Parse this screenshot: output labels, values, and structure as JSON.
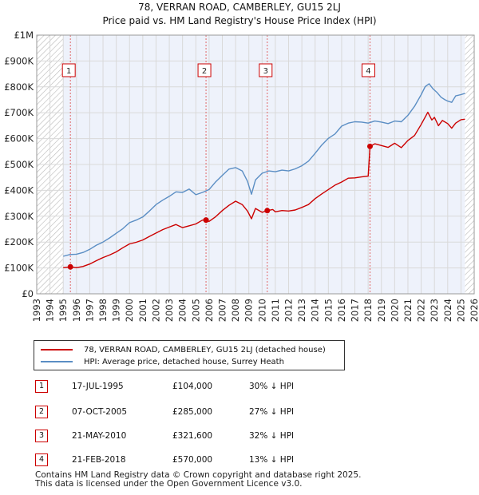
{
  "chart_data": {
    "type": "line",
    "title": "78, VERRAN ROAD, CAMBERLEY, GU15 2LJ",
    "subtitle": "Price paid vs. HM Land Registry's House Price Index (HPI)",
    "xlim": [
      1993,
      2026
    ],
    "ylim": [
      0,
      1000000
    ],
    "x_ticks": [
      "1993",
      "1994",
      "1995",
      "1996",
      "1997",
      "1998",
      "1999",
      "2000",
      "2001",
      "2002",
      "2003",
      "2004",
      "2005",
      "2006",
      "2007",
      "2008",
      "2009",
      "2010",
      "2011",
      "2012",
      "2013",
      "2014",
      "2015",
      "2016",
      "2017",
      "2018",
      "2019",
      "2020",
      "2021",
      "2022",
      "2023",
      "2024",
      "2025",
      "2026"
    ],
    "y_ticks": [
      {
        "value": 0,
        "label": "£0"
      },
      {
        "value": 100000,
        "label": "£100K"
      },
      {
        "value": 200000,
        "label": "£200K"
      },
      {
        "value": 300000,
        "label": "£300K"
      },
      {
        "value": 400000,
        "label": "£400K"
      },
      {
        "value": 500000,
        "label": "£500K"
      },
      {
        "value": 600000,
        "label": "£600K"
      },
      {
        "value": 700000,
        "label": "£700K"
      },
      {
        "value": 800000,
        "label": "£800K"
      },
      {
        "value": 900000,
        "label": "£900K"
      },
      {
        "value": 1000000,
        "label": "£1M"
      }
    ],
    "data_range": [
      1995.0,
      2025.3
    ],
    "series": [
      {
        "name": "78, VERRAN ROAD, CAMBERLEY, GU15 2LJ (detached house)",
        "color": "#cc0000",
        "x": [
          1995.0,
          1995.54,
          1996.0,
          1996.5,
          1997.0,
          1997.5,
          1998.0,
          1998.5,
          1999.0,
          1999.5,
          2000.0,
          2000.5,
          2001.0,
          2001.5,
          2002.0,
          2002.5,
          2003.0,
          2003.5,
          2004.0,
          2004.5,
          2005.0,
          2005.5,
          2005.77,
          2006.0,
          2006.5,
          2007.0,
          2007.5,
          2008.0,
          2008.5,
          2008.9,
          2009.2,
          2009.5,
          2010.0,
          2010.39,
          2010.8,
          2011.0,
          2011.5,
          2012.0,
          2012.5,
          2013.0,
          2013.5,
          2014.0,
          2014.5,
          2015.0,
          2015.5,
          2016.0,
          2016.5,
          2017.0,
          2017.5,
          2018.0,
          2018.14,
          2018.5,
          2019.0,
          2019.5,
          2020.0,
          2020.5,
          2021.0,
          2021.5,
          2022.0,
          2022.5,
          2022.8,
          2023.0,
          2023.3,
          2023.6,
          2024.0,
          2024.3,
          2024.6,
          2025.0,
          2025.3
        ],
        "y": [
          101000,
          104000,
          101000,
          106000,
          115000,
          128000,
          140000,
          150000,
          162000,
          178000,
          193000,
          199000,
          208000,
          222000,
          235000,
          248000,
          258000,
          268000,
          256000,
          263000,
          270000,
          285000,
          285000,
          280000,
          298000,
          322000,
          342000,
          358000,
          345000,
          320000,
          290000,
          330000,
          315000,
          321600,
          326000,
          317000,
          322000,
          320000,
          324000,
          334000,
          345000,
          368000,
          386000,
          403000,
          420000,
          432000,
          447000,
          448000,
          452000,
          455000,
          570000,
          580000,
          573000,
          566000,
          582000,
          565000,
          593000,
          612000,
          655000,
          702000,
          672000,
          682000,
          650000,
          670000,
          658000,
          640000,
          660000,
          673000,
          675000
        ]
      },
      {
        "name": "HPI: Average price, detached house, Surrey Heath",
        "color": "#5b8ec4",
        "x": [
          1995.0,
          1995.5,
          1996.0,
          1996.5,
          1997.0,
          1997.5,
          1998.0,
          1998.5,
          1999.0,
          1999.5,
          2000.0,
          2000.5,
          2001.0,
          2001.5,
          2002.0,
          2002.5,
          2003.0,
          2003.5,
          2004.0,
          2004.5,
          2005.0,
          2005.5,
          2006.0,
          2006.5,
          2007.0,
          2007.5,
          2008.0,
          2008.5,
          2008.9,
          2009.2,
          2009.5,
          2010.0,
          2010.5,
          2011.0,
          2011.5,
          2012.0,
          2012.5,
          2013.0,
          2013.5,
          2014.0,
          2014.5,
          2015.0,
          2015.5,
          2016.0,
          2016.5,
          2017.0,
          2017.5,
          2018.0,
          2018.5,
          2019.0,
          2019.5,
          2020.0,
          2020.5,
          2021.0,
          2021.5,
          2022.0,
          2022.3,
          2022.6,
          2022.9,
          2023.2,
          2023.5,
          2023.8,
          2024.0,
          2024.3,
          2024.6,
          2025.0,
          2025.3
        ],
        "y": [
          145000,
          152000,
          153000,
          160000,
          172000,
          188000,
          200000,
          216000,
          234000,
          252000,
          275000,
          285000,
          297000,
          320000,
          345000,
          362000,
          377000,
          394000,
          392000,
          405000,
          383000,
          392000,
          403000,
          433000,
          458000,
          482000,
          488000,
          475000,
          435000,
          385000,
          440000,
          466000,
          475000,
          472000,
          478000,
          475000,
          483000,
          495000,
          513000,
          543000,
          575000,
          601000,
          618000,
          648000,
          660000,
          665000,
          664000,
          660000,
          668000,
          664000,
          658000,
          668000,
          665000,
          690000,
          725000,
          770000,
          801000,
          812000,
          792000,
          778000,
          760000,
          750000,
          745000,
          740000,
          765000,
          770000,
          775000
        ]
      }
    ],
    "sales": [
      {
        "label": "1",
        "x": 1995.54,
        "y": 104000
      },
      {
        "label": "2",
        "x": 2005.77,
        "y": 285000
      },
      {
        "label": "3",
        "x": 2010.39,
        "y": 321600
      },
      {
        "label": "4",
        "x": 2018.14,
        "y": 570000
      }
    ]
  },
  "header": {
    "title": "78, VERRAN ROAD, CAMBERLEY, GU15 2LJ",
    "subtitle": "Price paid vs. HM Land Registry's House Price Index (HPI)"
  },
  "legend": {
    "property_label": "78, VERRAN ROAD, CAMBERLEY, GU15 2LJ (detached house)",
    "hpi_label": "HPI: Average price, detached house, Surrey Heath"
  },
  "transactions": [
    {
      "num": "1",
      "date": "17-JUL-1995",
      "price": "£104,000",
      "hpi": "30% ↓ HPI"
    },
    {
      "num": "2",
      "date": "07-OCT-2005",
      "price": "£285,000",
      "hpi": "27% ↓ HPI"
    },
    {
      "num": "3",
      "date": "21-MAY-2010",
      "price": "£321,600",
      "hpi": "32% ↓ HPI"
    },
    {
      "num": "4",
      "date": "21-FEB-2018",
      "price": "£570,000",
      "hpi": "13% ↓ HPI"
    }
  ],
  "footer": {
    "line1": "Contains HM Land Registry data © Crown copyright and database right 2025.",
    "line2": "This data is licensed under the Open Government Licence v3.0."
  }
}
